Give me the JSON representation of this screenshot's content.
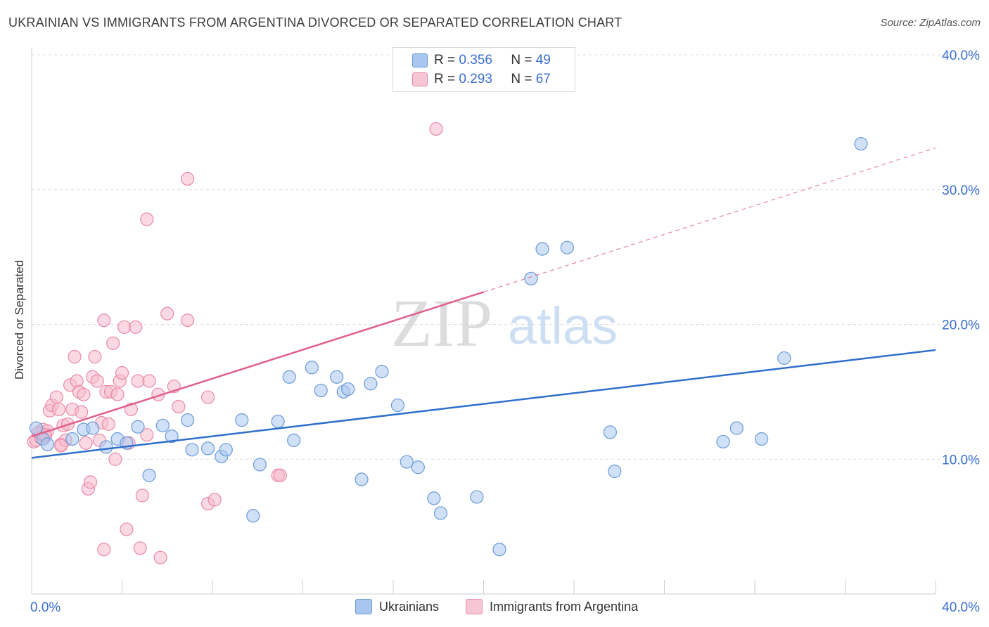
{
  "title": "UKRAINIAN VS IMMIGRANTS FROM ARGENTINA DIVORCED OR SEPARATED CORRELATION CHART",
  "source": "Source: ZipAtlas.com",
  "watermark": {
    "zip": "ZIP",
    "atlas": "atlas"
  },
  "legend_top": [
    {
      "r_label": "R = ",
      "r_value": "0.356",
      "n_label": "N = ",
      "n_value": "49"
    },
    {
      "r_label": "R = ",
      "r_value": "0.293",
      "n_label": "N = ",
      "n_value": "67"
    }
  ],
  "legend_bottom": [
    "Ukrainians",
    "Immigrants from Argentina"
  ],
  "colors": {
    "blue_fill": "#a9c7ee",
    "blue_stroke": "#6a9ad8",
    "blue_line": "#2f6fcc",
    "pink_fill": "#f6b9cb",
    "pink_stroke": "#e98aa8",
    "pink_line": "#e0608a",
    "tick_text": "#3a6fd1",
    "grid": "#dddddd"
  },
  "chart_data": {
    "type": "scatter",
    "title": "UKRAINIAN VS IMMIGRANTS FROM ARGENTINA DIVORCED OR SEPARATED CORRELATION CHART",
    "xlabel": "",
    "ylabel": "Divorced or Separated",
    "xlim": [
      0,
      40
    ],
    "ylim": [
      0,
      40
    ],
    "x_tick_labels": [
      "0.0%",
      "40.0%"
    ],
    "y_ticks": [
      10,
      20,
      30,
      40
    ],
    "y_tick_labels": [
      "10.0%",
      "20.0%",
      "30.0%",
      "40.0%"
    ],
    "grid": true,
    "series": [
      {
        "name": "Ukrainians",
        "r": 0.356,
        "n": 49,
        "trend": {
          "x": [
            0,
            40
          ],
          "y": [
            10.1,
            18.1
          ],
          "dashed_to": null
        },
        "points": [
          [
            0.2,
            12.3
          ],
          [
            0.5,
            11.5
          ],
          [
            0.7,
            11.1
          ],
          [
            1.8,
            11.5
          ],
          [
            2.3,
            12.2
          ],
          [
            2.7,
            12.3
          ],
          [
            3.3,
            10.9
          ],
          [
            3.8,
            11.5
          ],
          [
            4.2,
            11.2
          ],
          [
            4.7,
            12.4
          ],
          [
            5.2,
            8.8
          ],
          [
            5.8,
            12.5
          ],
          [
            6.2,
            11.7
          ],
          [
            6.9,
            12.9
          ],
          [
            7.1,
            10.7
          ],
          [
            7.8,
            10.8
          ],
          [
            8.4,
            10.2
          ],
          [
            8.6,
            10.7
          ],
          [
            9.3,
            12.9
          ],
          [
            9.8,
            5.8
          ],
          [
            10.1,
            9.6
          ],
          [
            10.9,
            12.8
          ],
          [
            11.4,
            16.1
          ],
          [
            11.6,
            11.4
          ],
          [
            12.4,
            16.8
          ],
          [
            12.8,
            15.1
          ],
          [
            13.5,
            16.1
          ],
          [
            13.8,
            15.0
          ],
          [
            14.0,
            15.2
          ],
          [
            14.6,
            8.5
          ],
          [
            15.0,
            15.6
          ],
          [
            15.5,
            16.5
          ],
          [
            16.2,
            14.0
          ],
          [
            16.6,
            9.8
          ],
          [
            17.1,
            9.4
          ],
          [
            17.8,
            7.1
          ],
          [
            18.1,
            6.0
          ],
          [
            19.7,
            7.2
          ],
          [
            20.7,
            3.3
          ],
          [
            22.1,
            23.4
          ],
          [
            22.6,
            25.6
          ],
          [
            23.7,
            25.7
          ],
          [
            25.6,
            12.0
          ],
          [
            25.8,
            9.1
          ],
          [
            30.6,
            11.3
          ],
          [
            31.2,
            12.3
          ],
          [
            32.3,
            11.5
          ],
          [
            33.3,
            17.5
          ],
          [
            36.7,
            33.4
          ]
        ]
      },
      {
        "name": "Immigrants from Argentina",
        "r": 0.293,
        "n": 67,
        "trend": {
          "x": [
            0,
            20
          ],
          "y": [
            11.7,
            22.4
          ],
          "dashed_to": [
            40,
            33.1
          ]
        },
        "points": [
          [
            0.1,
            11.3
          ],
          [
            0.2,
            11.4
          ],
          [
            0.3,
            12.0
          ],
          [
            0.4,
            11.6
          ],
          [
            0.5,
            12.2
          ],
          [
            0.6,
            11.7
          ],
          [
            0.7,
            12.1
          ],
          [
            0.8,
            13.6
          ],
          [
            0.9,
            14.0
          ],
          [
            1.1,
            14.6
          ],
          [
            1.2,
            13.7
          ],
          [
            1.3,
            11.1
          ],
          [
            1.4,
            12.5
          ],
          [
            1.5,
            11.4
          ],
          [
            1.6,
            12.6
          ],
          [
            1.7,
            15.5
          ],
          [
            1.8,
            13.7
          ],
          [
            1.9,
            17.6
          ],
          [
            2.0,
            15.8
          ],
          [
            2.1,
            15.0
          ],
          [
            2.2,
            13.5
          ],
          [
            2.3,
            14.8
          ],
          [
            2.4,
            11.2
          ],
          [
            2.5,
            7.8
          ],
          [
            2.6,
            8.3
          ],
          [
            2.7,
            16.1
          ],
          [
            2.8,
            17.6
          ],
          [
            2.9,
            15.8
          ],
          [
            3.0,
            11.4
          ],
          [
            3.1,
            12.7
          ],
          [
            3.2,
            20.3
          ],
          [
            3.3,
            15.0
          ],
          [
            3.4,
            12.6
          ],
          [
            3.5,
            15.0
          ],
          [
            3.6,
            18.6
          ],
          [
            3.7,
            10.0
          ],
          [
            3.8,
            14.8
          ],
          [
            3.9,
            15.8
          ],
          [
            4.0,
            16.4
          ],
          [
            4.1,
            19.8
          ],
          [
            4.2,
            4.8
          ],
          [
            4.3,
            11.2
          ],
          [
            4.4,
            13.7
          ],
          [
            4.6,
            19.8
          ],
          [
            4.7,
            15.8
          ],
          [
            4.8,
            3.4
          ],
          [
            4.9,
            7.3
          ],
          [
            5.1,
            11.8
          ],
          [
            5.2,
            15.8
          ],
          [
            5.1,
            27.8
          ],
          [
            5.6,
            14.8
          ],
          [
            5.7,
            2.7
          ],
          [
            6.0,
            20.8
          ],
          [
            6.3,
            15.4
          ],
          [
            6.5,
            13.9
          ],
          [
            6.9,
            30.8
          ],
          [
            6.9,
            20.3
          ],
          [
            7.8,
            14.6
          ],
          [
            7.8,
            6.7
          ],
          [
            8.1,
            7.0
          ],
          [
            10.9,
            8.8
          ],
          [
            11.0,
            8.8
          ],
          [
            17.9,
            34.5
          ],
          [
            3.2,
            3.3
          ],
          [
            1.3,
            11.0
          ],
          [
            0.4,
            11.9
          ],
          [
            0.6,
            11.8
          ]
        ]
      }
    ]
  }
}
